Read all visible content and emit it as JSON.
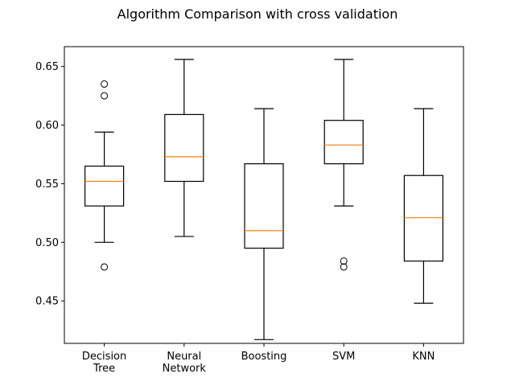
{
  "chart_data": {
    "type": "boxplot",
    "title": "Algorithm Comparison with cross validation",
    "xlabel": "",
    "ylabel": "",
    "ylim": [
      0.4138,
      0.6669
    ],
    "yticks": [
      0.45,
      0.5,
      0.55,
      0.6,
      0.65
    ],
    "ytick_labels": [
      "0.45",
      "0.50",
      "0.55",
      "0.60",
      "0.65"
    ],
    "grid": false,
    "box_color": "#000000",
    "median_color": "#ff7f0e",
    "categories": [
      {
        "label_lines": [
          "Decision",
          "Tree"
        ],
        "whisker_low": 0.5,
        "q1": 0.531,
        "median": 0.552,
        "q3": 0.565,
        "whisker_high": 0.594,
        "outliers": [
          0.479,
          0.625,
          0.635
        ]
      },
      {
        "label_lines": [
          "Neural",
          "Network"
        ],
        "whisker_low": 0.505,
        "q1": 0.552,
        "median": 0.573,
        "q3": 0.609,
        "whisker_high": 0.656,
        "outliers": []
      },
      {
        "label_lines": [
          "Boosting"
        ],
        "whisker_low": 0.417,
        "q1": 0.495,
        "median": 0.51,
        "q3": 0.567,
        "whisker_high": 0.614,
        "outliers": []
      },
      {
        "label_lines": [
          "SVM"
        ],
        "whisker_low": 0.531,
        "q1": 0.567,
        "median": 0.583,
        "q3": 0.604,
        "whisker_high": 0.656,
        "outliers": [
          0.479,
          0.484
        ]
      },
      {
        "label_lines": [
          "KNN"
        ],
        "whisker_low": 0.448,
        "q1": 0.484,
        "median": 0.521,
        "q3": 0.557,
        "whisker_high": 0.614,
        "outliers": []
      }
    ]
  }
}
